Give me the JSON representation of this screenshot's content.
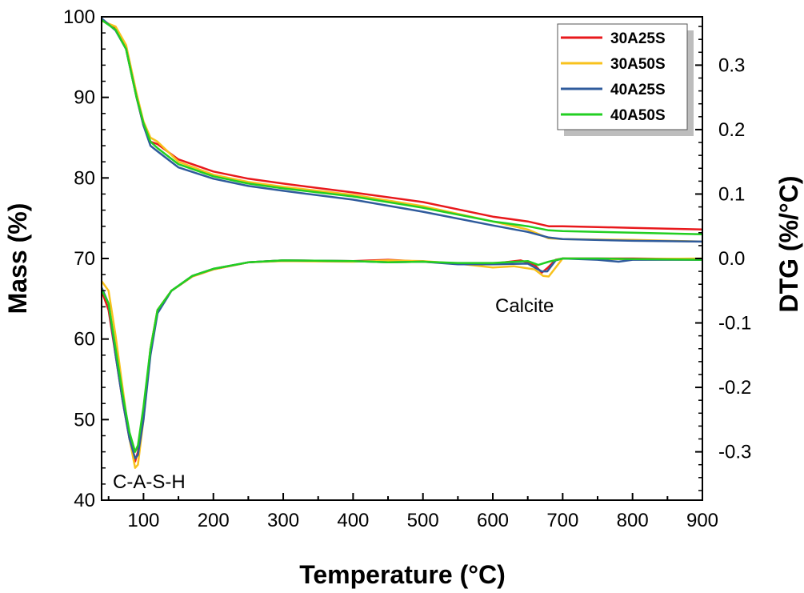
{
  "chart_data": {
    "type": "line",
    "xlabel": "Temperature (°C)",
    "ylabel_left": "Mass (%)",
    "ylabel_right": "DTG (%/°C)",
    "xlim": [
      40,
      900
    ],
    "ylim_left": [
      40,
      100
    ],
    "ylim_right": [
      -0.375,
      0.375
    ],
    "x_ticks": [
      "100",
      "200",
      "300",
      "400",
      "500",
      "600",
      "700",
      "800",
      "900"
    ],
    "y_left_ticks": [
      "40",
      "50",
      "60",
      "70",
      "80",
      "90",
      "100"
    ],
    "y_right_ticks": [
      "-0.3",
      "-0.2",
      "-0.1",
      "0.0",
      "0.1",
      "0.2",
      "0.3"
    ],
    "annotations": [
      "C-A-S-H",
      "Calcite"
    ],
    "legend_position": "top-right",
    "grid": false,
    "series": [
      {
        "name": "30A25S",
        "color": "#e8191c",
        "tga": [
          [
            40,
            99.7
          ],
          [
            60,
            98.5
          ],
          [
            75,
            96
          ],
          [
            90,
            90
          ],
          [
            100,
            86.5
          ],
          [
            110,
            84.5
          ],
          [
            120,
            84.2
          ],
          [
            150,
            82.3
          ],
          [
            200,
            80.8
          ],
          [
            250,
            79.9
          ],
          [
            300,
            79.3
          ],
          [
            400,
            78.2
          ],
          [
            500,
            77
          ],
          [
            600,
            75.2
          ],
          [
            650,
            74.6
          ],
          [
            680,
            74
          ],
          [
            700,
            74
          ],
          [
            800,
            73.8
          ],
          [
            900,
            73.6
          ]
        ],
        "dtg": [
          [
            40,
            -0.05
          ],
          [
            50,
            -0.08
          ],
          [
            60,
            -0.15
          ],
          [
            70,
            -0.22
          ],
          [
            80,
            -0.28
          ],
          [
            88,
            -0.315
          ],
          [
            92,
            -0.3
          ],
          [
            100,
            -0.24
          ],
          [
            110,
            -0.14
          ],
          [
            120,
            -0.08
          ],
          [
            140,
            -0.05
          ],
          [
            170,
            -0.028
          ],
          [
            200,
            -0.017
          ],
          [
            250,
            -0.006
          ],
          [
            300,
            -0.003
          ],
          [
            400,
            -0.004
          ],
          [
            450,
            -0.002
          ],
          [
            500,
            -0.005
          ],
          [
            550,
            -0.008
          ],
          [
            600,
            -0.008
          ],
          [
            640,
            -0.003
          ],
          [
            660,
            -0.01
          ],
          [
            670,
            -0.022
          ],
          [
            678,
            -0.015
          ],
          [
            690,
            -0.002
          ],
          [
            700,
            0
          ],
          [
            750,
            0
          ],
          [
            800,
            0
          ],
          [
            900,
            -0.001
          ]
        ]
      },
      {
        "name": "30A50S",
        "color": "#f8c21d",
        "tga": [
          [
            40,
            99.5
          ],
          [
            60,
            98.8
          ],
          [
            75,
            96.5
          ],
          [
            90,
            90.5
          ],
          [
            100,
            87
          ],
          [
            110,
            85
          ],
          [
            120,
            84.5
          ],
          [
            150,
            82
          ],
          [
            200,
            80.4
          ],
          [
            250,
            79.5
          ],
          [
            300,
            78.9
          ],
          [
            400,
            77.9
          ],
          [
            500,
            76.5
          ],
          [
            600,
            74.6
          ],
          [
            650,
            73.6
          ],
          [
            680,
            72.5
          ],
          [
            700,
            72.4
          ],
          [
            800,
            72.3
          ],
          [
            900,
            72.1
          ]
        ],
        "dtg": [
          [
            40,
            -0.035
          ],
          [
            50,
            -0.05
          ],
          [
            60,
            -0.12
          ],
          [
            70,
            -0.2
          ],
          [
            80,
            -0.28
          ],
          [
            88,
            -0.325
          ],
          [
            92,
            -0.32
          ],
          [
            100,
            -0.25
          ],
          [
            110,
            -0.14
          ],
          [
            120,
            -0.08
          ],
          [
            140,
            -0.05
          ],
          [
            170,
            -0.028
          ],
          [
            200,
            -0.017
          ],
          [
            250,
            -0.006
          ],
          [
            300,
            -0.004
          ],
          [
            400,
            -0.005
          ],
          [
            450,
            -0.003
          ],
          [
            500,
            -0.004
          ],
          [
            550,
            -0.008
          ],
          [
            600,
            -0.014
          ],
          [
            630,
            -0.012
          ],
          [
            660,
            -0.017
          ],
          [
            672,
            -0.027
          ],
          [
            680,
            -0.028
          ],
          [
            690,
            -0.014
          ],
          [
            700,
            0
          ],
          [
            750,
            -0.001
          ],
          [
            800,
            -0.001
          ],
          [
            900,
            0
          ]
        ]
      },
      {
        "name": "40A25S",
        "color": "#2f5b9c",
        "tga": [
          [
            40,
            99.8
          ],
          [
            60,
            98.3
          ],
          [
            75,
            96
          ],
          [
            90,
            90
          ],
          [
            100,
            86.5
          ],
          [
            110,
            84
          ],
          [
            120,
            83.3
          ],
          [
            150,
            81.3
          ],
          [
            200,
            79.9
          ],
          [
            250,
            79
          ],
          [
            300,
            78.4
          ],
          [
            400,
            77.3
          ],
          [
            500,
            75.8
          ],
          [
            600,
            74.1
          ],
          [
            650,
            73.3
          ],
          [
            680,
            72.6
          ],
          [
            700,
            72.4
          ],
          [
            800,
            72.2
          ],
          [
            900,
            72.1
          ]
        ],
        "dtg": [
          [
            40,
            -0.045
          ],
          [
            50,
            -0.07
          ],
          [
            60,
            -0.15
          ],
          [
            70,
            -0.22
          ],
          [
            80,
            -0.28
          ],
          [
            88,
            -0.31
          ],
          [
            92,
            -0.305
          ],
          [
            100,
            -0.25
          ],
          [
            110,
            -0.15
          ],
          [
            120,
            -0.085
          ],
          [
            140,
            -0.05
          ],
          [
            170,
            -0.027
          ],
          [
            200,
            -0.016
          ],
          [
            250,
            -0.006
          ],
          [
            300,
            -0.003
          ],
          [
            400,
            -0.004
          ],
          [
            450,
            -0.006
          ],
          [
            500,
            -0.005
          ],
          [
            550,
            -0.009
          ],
          [
            600,
            -0.009
          ],
          [
            650,
            -0.008
          ],
          [
            670,
            -0.02
          ],
          [
            678,
            -0.02
          ],
          [
            690,
            -0.003
          ],
          [
            700,
            0
          ],
          [
            750,
            -0.002
          ],
          [
            780,
            -0.005
          ],
          [
            800,
            -0.002
          ],
          [
            900,
            -0.002
          ]
        ]
      },
      {
        "name": "40A50S",
        "color": "#22cf22",
        "tga": [
          [
            40,
            99.6
          ],
          [
            60,
            98.4
          ],
          [
            75,
            96
          ],
          [
            90,
            90
          ],
          [
            100,
            86.8
          ],
          [
            110,
            84.5
          ],
          [
            120,
            83.7
          ],
          [
            150,
            81.7
          ],
          [
            200,
            80.2
          ],
          [
            250,
            79.3
          ],
          [
            300,
            78.7
          ],
          [
            400,
            77.7
          ],
          [
            500,
            76.3
          ],
          [
            600,
            74.6
          ],
          [
            650,
            74
          ],
          [
            680,
            73.5
          ],
          [
            700,
            73.4
          ],
          [
            800,
            73.2
          ],
          [
            900,
            73
          ]
        ],
        "dtg": [
          [
            40,
            -0.048
          ],
          [
            50,
            -0.07
          ],
          [
            60,
            -0.14
          ],
          [
            70,
            -0.21
          ],
          [
            80,
            -0.27
          ],
          [
            88,
            -0.3
          ],
          [
            92,
            -0.29
          ],
          [
            100,
            -0.23
          ],
          [
            110,
            -0.14
          ],
          [
            120,
            -0.08
          ],
          [
            140,
            -0.05
          ],
          [
            170,
            -0.027
          ],
          [
            200,
            -0.016
          ],
          [
            250,
            -0.006
          ],
          [
            300,
            -0.003
          ],
          [
            400,
            -0.004
          ],
          [
            450,
            -0.006
          ],
          [
            500,
            -0.005
          ],
          [
            550,
            -0.007
          ],
          [
            600,
            -0.007
          ],
          [
            650,
            -0.004
          ],
          [
            665,
            -0.01
          ],
          [
            680,
            -0.005
          ],
          [
            700,
            0
          ],
          [
            750,
            0
          ],
          [
            800,
            -0.001
          ],
          [
            900,
            -0.002
          ]
        ]
      }
    ]
  }
}
